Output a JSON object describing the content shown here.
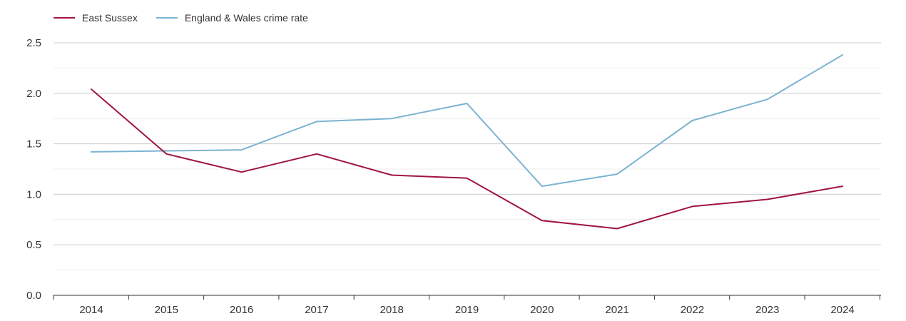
{
  "chart_data": {
    "type": "line",
    "title": "",
    "xlabel": "",
    "ylabel": "",
    "categories": [
      "2014",
      "2015",
      "2016",
      "2017",
      "2018",
      "2019",
      "2020",
      "2021",
      "2022",
      "2023",
      "2024"
    ],
    "ylim": [
      0,
      2.5
    ],
    "yticks": [
      "0.0",
      "0.5",
      "1.0",
      "1.5",
      "2.0",
      "2.5"
    ],
    "grid": true,
    "legend_position": "top-left",
    "series": [
      {
        "name": "East Sussex",
        "color": "#a0153e",
        "values": [
          2.04,
          1.4,
          1.22,
          1.4,
          1.19,
          1.16,
          0.74,
          0.66,
          0.88,
          0.95,
          1.08
        ]
      },
      {
        "name": "England & Wales crime rate",
        "color": "#7bb3d1",
        "values": [
          1.42,
          1.43,
          1.44,
          1.72,
          1.75,
          1.9,
          1.08,
          1.2,
          1.73,
          1.94,
          2.38
        ]
      }
    ]
  }
}
